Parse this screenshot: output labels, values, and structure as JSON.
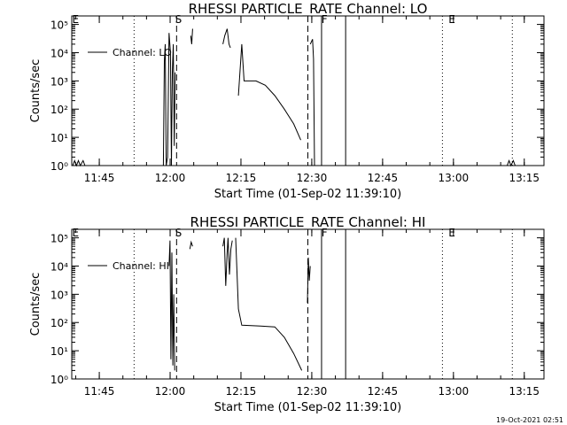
{
  "chart_data": [
    {
      "type": "line",
      "title": "RHESSI PARTICLE_RATE Channel: LO",
      "xlabel": "Start Time (01-Sep-02 11:39:10)",
      "ylabel": "Counts/sec",
      "x_units": "minutes after 11:39:10",
      "xlim": [
        0,
        100
      ],
      "ylim": [
        1,
        200000
      ],
      "yscale": "log",
      "x_ticks": [
        {
          "label": "11:45",
          "t": 5.83
        },
        {
          "label": "12:00",
          "t": 20.83
        },
        {
          "label": "12:15",
          "t": 35.83
        },
        {
          "label": "12:30",
          "t": 50.83
        },
        {
          "label": "12:45",
          "t": 65.83
        },
        {
          "label": "13:00",
          "t": 80.83
        },
        {
          "label": "13:15",
          "t": 95.83
        }
      ],
      "y_ticks": [
        {
          "label": "10⁰",
          "v": 1
        },
        {
          "label": "10¹",
          "v": 10
        },
        {
          "label": "10²",
          "v": 100
        },
        {
          "label": "10³",
          "v": 1000
        },
        {
          "label": "10⁴",
          "v": 10000
        },
        {
          "label": "10⁵",
          "v": 100000
        }
      ],
      "legend": {
        "label": "Channel: LO",
        "placement": "top-left"
      },
      "series": [
        {
          "name": "Channel: LO",
          "segments": [
            [
              [
                0.2,
                1
              ],
              [
                0.6,
                1.5
              ],
              [
                1.0,
                1
              ],
              [
                1.4,
                1.5
              ],
              [
                1.8,
                1
              ],
              [
                2.4,
                1.5
              ],
              [
                2.8,
                1
              ]
            ],
            [
              [
                92.2,
                1
              ],
              [
                92.6,
                1.5
              ],
              [
                93.0,
                1
              ],
              [
                93.5,
                1.5
              ],
              [
                93.9,
                1
              ]
            ],
            [
              [
                19.4,
                1
              ],
              [
                19.6,
                5000
              ],
              [
                19.8,
                20000
              ],
              [
                20.0,
                1
              ],
              [
                20.3,
                2
              ],
              [
                20.6,
                50000
              ],
              [
                20.9,
                10000
              ],
              [
                21.1,
                1
              ],
              [
                21.3,
                2000
              ],
              [
                21.5,
                20000
              ],
              [
                21.7,
                5
              ],
              [
                21.9,
                2000
              ]
            ],
            [
              [
                25.2,
                40000
              ],
              [
                25.4,
                20000
              ],
              [
                25.6,
                70000
              ]
            ],
            [
              [
                32.0,
                20000
              ],
              [
                32.4,
                40000
              ],
              [
                32.9,
                70000
              ],
              [
                33.3,
                20000
              ],
              [
                33.6,
                15000
              ]
            ],
            [
              [
                35.3,
                300
              ],
              [
                36.0,
                20000
              ],
              [
                36.5,
                1000
              ],
              [
                37.5,
                1000
              ],
              [
                39.0,
                1000
              ],
              [
                41.0,
                700
              ],
              [
                43.0,
                300
              ],
              [
                45.0,
                100
              ],
              [
                47.0,
                30
              ],
              [
                48.5,
                8
              ]
            ],
            [
              [
                50.5,
                20000
              ],
              [
                51.0,
                30000
              ],
              [
                51.2,
                6000
              ],
              [
                51.4,
                1
              ],
              [
                51.7,
                1
              ],
              [
                52.4,
                1
              ]
            ]
          ]
        }
      ],
      "vlines": [
        {
          "t": 13.2,
          "style": "dotted"
        },
        {
          "t": 22.2,
          "style": "dashed"
        },
        {
          "t": 50.0,
          "style": "dashed"
        },
        {
          "t": 52.9,
          "style": "solid"
        },
        {
          "t": 58.0,
          "style": "solid"
        },
        {
          "t": 78.5,
          "style": "dotted"
        },
        {
          "t": 93.3,
          "style": "dotted"
        }
      ],
      "flags": [
        {
          "label": "E",
          "t": 0.8
        },
        {
          "label": "S",
          "t": 22.6
        },
        {
          "label": "F",
          "t": 53.5
        },
        {
          "label": "E",
          "t": 80.5
        }
      ]
    },
    {
      "type": "line",
      "title": "RHESSI PARTICLE_RATE Channel: HI",
      "xlabel": "Start Time (01-Sep-02 11:39:10)",
      "ylabel": "Counts/sec",
      "x_units": "minutes after 11:39:10",
      "xlim": [
        0,
        100
      ],
      "ylim": [
        1,
        200000
      ],
      "yscale": "log",
      "x_ticks": [
        {
          "label": "11:45",
          "t": 5.83
        },
        {
          "label": "12:00",
          "t": 20.83
        },
        {
          "label": "12:15",
          "t": 35.83
        },
        {
          "label": "12:30",
          "t": 50.83
        },
        {
          "label": "12:45",
          "t": 65.83
        },
        {
          "label": "13:00",
          "t": 80.83
        },
        {
          "label": "13:15",
          "t": 95.83
        }
      ],
      "y_ticks": [
        {
          "label": "10⁰",
          "v": 1
        },
        {
          "label": "10¹",
          "v": 10
        },
        {
          "label": "10²",
          "v": 100
        },
        {
          "label": "10³",
          "v": 1000
        },
        {
          "label": "10⁴",
          "v": 10000
        },
        {
          "label": "10⁵",
          "v": 100000
        }
      ],
      "legend": {
        "label": "Channel: HI",
        "placement": "top-left"
      },
      "series": [
        {
          "name": "Channel: HI",
          "segments": [
            [
              [
                20.6,
                10000
              ],
              [
                20.8,
                80000
              ],
              [
                21.0,
                5
              ],
              [
                21.2,
                30000
              ],
              [
                21.4,
                3
              ],
              [
                21.6,
                1000
              ],
              [
                21.8,
                2
              ]
            ],
            [
              [
                25.0,
                40000
              ],
              [
                25.3,
                70000
              ],
              [
                25.6,
                50000
              ]
            ],
            [
              [
                32.0,
                50000
              ],
              [
                32.3,
                100000
              ],
              [
                32.6,
                2000
              ],
              [
                32.9,
                30000
              ],
              [
                33.1,
                100000
              ],
              [
                33.4,
                5000
              ],
              [
                33.7,
                40000
              ],
              [
                34.0,
                80000
              ]
            ],
            [
              [
                34.7,
                100000
              ],
              [
                35.3,
                300
              ],
              [
                36.0,
                80
              ],
              [
                40.0,
                75
              ],
              [
                43.0,
                70
              ],
              [
                45.0,
                30
              ],
              [
                47.0,
                8
              ],
              [
                48.7,
                2
              ]
            ],
            [
              [
                49.9,
                500
              ],
              [
                50.1,
                20000
              ],
              [
                50.3,
                3000
              ],
              [
                50.5,
                10000
              ]
            ]
          ]
        }
      ],
      "vlines": [
        {
          "t": 13.2,
          "style": "dotted"
        },
        {
          "t": 22.2,
          "style": "dashed"
        },
        {
          "t": 50.0,
          "style": "dashed"
        },
        {
          "t": 52.9,
          "style": "solid"
        },
        {
          "t": 58.0,
          "style": "solid"
        },
        {
          "t": 78.5,
          "style": "dotted"
        },
        {
          "t": 93.3,
          "style": "dotted"
        }
      ],
      "flags": [
        {
          "label": "E",
          "t": 0.8
        },
        {
          "label": "S",
          "t": 22.6
        },
        {
          "label": "F",
          "t": 53.5
        },
        {
          "label": "E",
          "t": 80.5
        }
      ]
    }
  ],
  "footer": {
    "timestamp": "19-Oct-2021 02:51"
  },
  "colors": {
    "background": "#ffffff",
    "foreground": "#000000"
  }
}
